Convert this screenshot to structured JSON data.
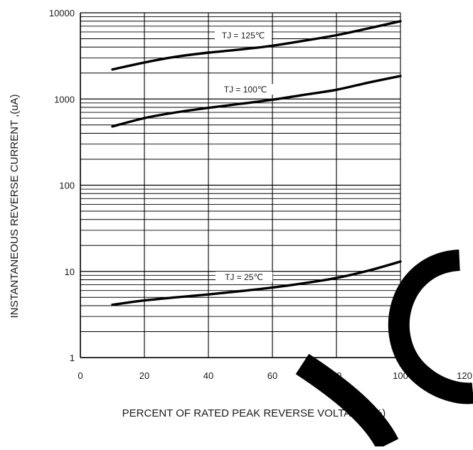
{
  "chart_data": {
    "type": "line",
    "title": "",
    "xlabel": "PERCENT OF RATED PEAK REVERSE VOLTAGE  (%)",
    "ylabel": "INSTANTANEOUS REVERSE CURRENT ,(uA)",
    "xlim": [
      0,
      120
    ],
    "ylim": [
      1,
      10000
    ],
    "yscale": "log",
    "grid": true,
    "x_ticks": [
      "0",
      "20",
      "40",
      "60",
      "80",
      "100",
      "120"
    ],
    "y_ticks": [
      "1",
      "10",
      "100",
      "1000",
      "10000"
    ],
    "series": [
      {
        "name": "TJ = 125℃",
        "x": [
          10,
          20,
          30,
          40,
          50,
          60,
          70,
          80,
          90,
          100
        ],
        "y": [
          2200,
          2650,
          3100,
          3450,
          3750,
          4150,
          4750,
          5500,
          6600,
          8000
        ]
      },
      {
        "name": "TJ = 100℃",
        "x": [
          10,
          20,
          30,
          40,
          50,
          60,
          70,
          80,
          90,
          100
        ],
        "y": [
          480,
          600,
          700,
          790,
          880,
          980,
          1120,
          1280,
          1550,
          1850
        ]
      },
      {
        "name": "TJ = 25℃",
        "x": [
          10,
          20,
          30,
          40,
          50,
          60,
          70,
          80,
          90,
          100
        ],
        "y": [
          4.1,
          4.6,
          5.0,
          5.4,
          5.9,
          6.5,
          7.3,
          8.4,
          10.2,
          13.0
        ]
      }
    ],
    "line_color": "#000000",
    "grid_color": "#000000"
  }
}
